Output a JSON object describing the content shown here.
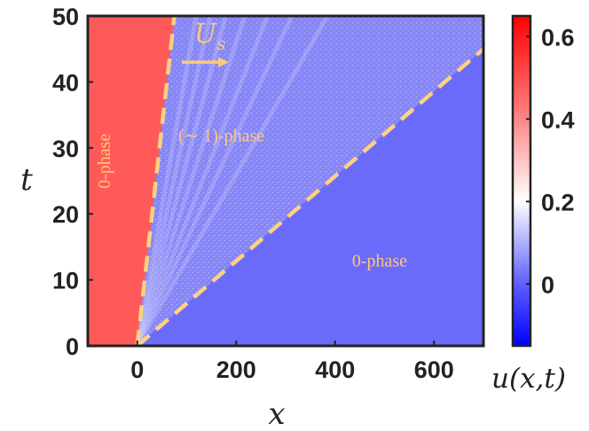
{
  "chart_data": {
    "type": "heatmap",
    "xlabel": "x",
    "ylabel": "t",
    "xlim": [
      -100,
      700
    ],
    "ylim": [
      0,
      50
    ],
    "xticks": [
      "0",
      "200",
      "400",
      "600"
    ],
    "yticks": [
      "0",
      "10",
      "20",
      "30",
      "40",
      "50"
    ],
    "colorbar": {
      "label": "u(x,t)",
      "range": [
        -0.15,
        0.65
      ],
      "ticks": [
        "0",
        "0.2",
        "0.4",
        "0.6"
      ],
      "colors": [
        "#0000ff",
        "#ffffff",
        "#ff0000"
      ]
    },
    "regions": [
      {
        "label": "0-phase",
        "color": "#ff5a5a",
        "level": 0.6
      },
      {
        "label": "(∼ 1)-phase",
        "color": "#8080f8",
        "level": 0
      },
      {
        "label": "0-phase",
        "color": "#6b6bfb",
        "level": 0
      }
    ],
    "lines": [
      {
        "style": "dashed",
        "color": "#ffd27f",
        "points": [
          [
            0,
            0
          ],
          [
            75,
            50
          ]
        ]
      },
      {
        "style": "dashed",
        "color": "#ffd27f",
        "points": [
          [
            0,
            0
          ],
          [
            700,
            45
          ]
        ]
      }
    ],
    "annotations": [
      {
        "text": "0-phase",
        "x": -55,
        "y": 28,
        "rotation": -90
      },
      {
        "text": "(∼ 1)-phase",
        "x": 170,
        "y": 31
      },
      {
        "text": "0-phase",
        "x": 490,
        "y": 12
      },
      {
        "text": "U",
        "sub": "s",
        "x": 115,
        "y": 46,
        "arrow_to": [
          185,
          43
        ]
      }
    ],
    "colors": {
      "annotation": "#ffc878",
      "axis": "#222222"
    }
  }
}
